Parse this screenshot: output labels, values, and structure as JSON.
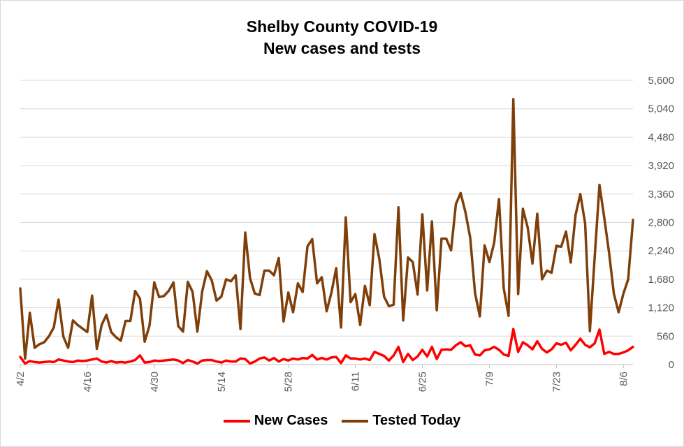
{
  "chart_data": {
    "type": "line",
    "title": [
      "Shelby County COVID-19",
      "New cases and tests"
    ],
    "xlabel": "",
    "ylabel": "",
    "x_start": "4/2",
    "x_end": "8/8",
    "x_ticks": [
      "4/2",
      "4/16",
      "4/30",
      "5/14",
      "5/28",
      "6/11",
      "6/25",
      "7/9",
      "7/23",
      "8/6"
    ],
    "y_ticks": [
      "0",
      "560",
      "1,120",
      "1,680",
      "2,240",
      "2,800",
      "3,360",
      "3,920",
      "4,480",
      "5,040",
      "5,600"
    ],
    "ylim": [
      0,
      5600
    ],
    "grid": "horizontal",
    "legend_position": "bottom",
    "series": [
      {
        "name": "New Cases",
        "color": "#ff0000",
        "values": [
          150,
          20,
          70,
          50,
          40,
          50,
          60,
          50,
          100,
          80,
          60,
          50,
          80,
          70,
          80,
          100,
          120,
          60,
          40,
          70,
          40,
          50,
          40,
          60,
          90,
          180,
          40,
          50,
          80,
          70,
          80,
          90,
          100,
          80,
          30,
          90,
          60,
          20,
          80,
          90,
          90,
          60,
          40,
          80,
          60,
          60,
          120,
          110,
          20,
          60,
          120,
          140,
          80,
          130,
          60,
          110,
          80,
          120,
          100,
          130,
          120,
          190,
          100,
          130,
          100,
          140,
          150,
          30,
          180,
          120,
          120,
          100,
          120,
          90,
          250,
          210,
          170,
          80,
          180,
          350,
          50,
          210,
          90,
          160,
          290,
          160,
          350,
          110,
          290,
          300,
          290,
          380,
          440,
          360,
          380,
          200,
          180,
          280,
          300,
          350,
          290,
          200,
          170,
          700,
          250,
          440,
          380,
          300,
          460,
          310,
          240,
          300,
          420,
          390,
          430,
          280,
          390,
          510,
          390,
          340,
          420,
          690,
          210,
          250,
          210,
          210,
          240,
          280,
          350
        ]
      },
      {
        "name": "Tested Today",
        "color": "#7f3f0a",
        "values": [
          1500,
          120,
          1020,
          330,
          400,
          440,
          560,
          730,
          1280,
          550,
          330,
          870,
          780,
          710,
          640,
          1360,
          310,
          780,
          980,
          640,
          540,
          470,
          860,
          860,
          1450,
          1300,
          450,
          770,
          1620,
          1330,
          1350,
          1450,
          1620,
          760,
          650,
          1630,
          1430,
          650,
          1440,
          1840,
          1660,
          1260,
          1340,
          1680,
          1640,
          1760,
          700,
          2600,
          1700,
          1400,
          1370,
          1850,
          1850,
          1760,
          2100,
          850,
          1420,
          1030,
          1600,
          1430,
          2330,
          2470,
          1600,
          1720,
          1050,
          1420,
          1900,
          730,
          2900,
          1230,
          1390,
          780,
          1550,
          1170,
          2570,
          2080,
          1340,
          1150,
          1180,
          3100,
          870,
          2110,
          2020,
          1380,
          2960,
          1460,
          2820,
          1070,
          2480,
          2480,
          2250,
          3160,
          3380,
          3000,
          2500,
          1410,
          950,
          2350,
          2020,
          2400,
          3260,
          1500,
          960,
          5230,
          1390,
          3070,
          2700,
          1990,
          2970,
          1680,
          1850,
          1810,
          2340,
          2320,
          2620,
          2010,
          2950,
          3360,
          2780,
          660,
          2120,
          3540,
          2890,
          2210,
          1400,
          1030,
          1400,
          1680,
          2850
        ]
      }
    ]
  }
}
